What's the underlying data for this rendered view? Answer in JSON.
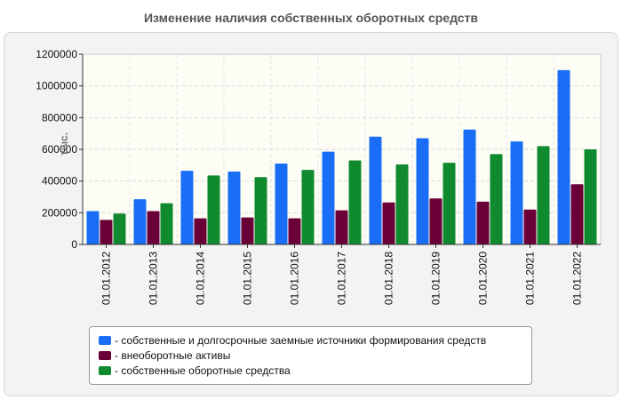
{
  "chart_data": {
    "type": "bar",
    "title": "Изменение наличия собственных оборотных средств",
    "ylabel": "тыс.",
    "xlabel": "",
    "ylim": [
      0,
      1200000
    ],
    "yticks": [
      0,
      200000,
      400000,
      600000,
      800000,
      1000000,
      1200000
    ],
    "categories": [
      "01.01.2012",
      "01.01.2013",
      "01.01.2014",
      "01.01.2015",
      "01.01.2016",
      "01.01.2017",
      "01.01.2018",
      "01.01.2019",
      "01.01.2020",
      "01.01.2021",
      "01.01.2022"
    ],
    "series": [
      {
        "name": "- собственные и долгосрочные заемные источники формирования средств",
        "color": "#1a6ef5",
        "values": [
          210000,
          285000,
          465000,
          460000,
          510000,
          585000,
          680000,
          670000,
          725000,
          650000,
          1100000
        ]
      },
      {
        "name": "- внеоборотные активы",
        "color": "#6b0038",
        "values": [
          155000,
          210000,
          165000,
          170000,
          165000,
          215000,
          265000,
          290000,
          270000,
          220000,
          380000
        ]
      },
      {
        "name": "- собственные оборотные средства",
        "color": "#0f8a2e",
        "values": [
          195000,
          260000,
          435000,
          425000,
          470000,
          530000,
          505000,
          515000,
          570000,
          620000,
          600000
        ]
      }
    ],
    "grid": true,
    "legend_position": "bottom"
  }
}
